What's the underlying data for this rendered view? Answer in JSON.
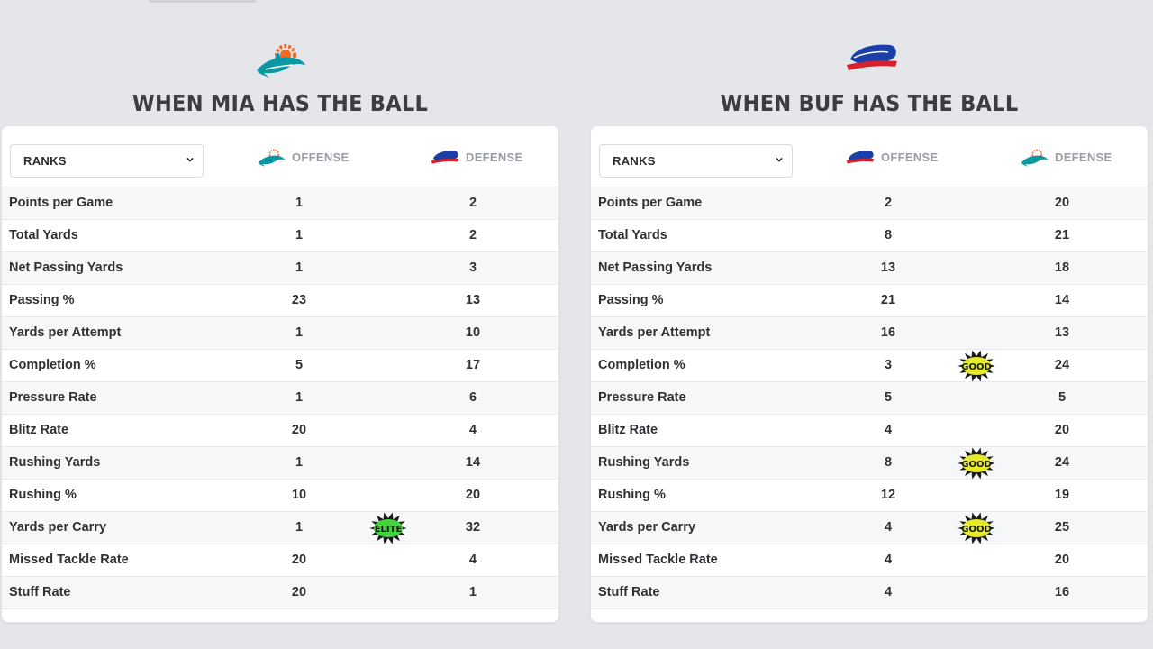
{
  "colors": {
    "mia_aqua": "#0b98a3",
    "mia_orange": "#f26a24",
    "buf_blue": "#1b3fa8",
    "buf_red": "#d5202e",
    "badge_green": "#43d33a",
    "badge_yellow": "#e6ea2c"
  },
  "panels": [
    {
      "title": "WHEN MIA HAS THE BALL",
      "logo": "dolphin-logo-icon",
      "select_value": "RANKS",
      "offense_label": "OFFENSE",
      "defense_label": "DEFENSE",
      "rows": [
        {
          "label": "Points per Game",
          "offense": "1",
          "defense": "2"
        },
        {
          "label": "Total Yards",
          "offense": "1",
          "defense": "2"
        },
        {
          "label": "Net Passing Yards",
          "offense": "1",
          "defense": "3"
        },
        {
          "label": "Passing %",
          "offense": "23",
          "defense": "13"
        },
        {
          "label": "Yards per Attempt",
          "offense": "1",
          "defense": "10"
        },
        {
          "label": "Completion %",
          "offense": "5",
          "defense": "17"
        },
        {
          "label": "Pressure Rate",
          "offense": "1",
          "defense": "6"
        },
        {
          "label": "Blitz Rate",
          "offense": "20",
          "defense": "4"
        },
        {
          "label": "Rushing Yards",
          "offense": "1",
          "defense": "14"
        },
        {
          "label": "Rushing %",
          "offense": "10",
          "defense": "20"
        },
        {
          "label": "Yards per Carry",
          "offense": "1",
          "defense": "32",
          "badge": "ELITE"
        },
        {
          "label": "Missed Tackle Rate",
          "offense": "20",
          "defense": "4"
        },
        {
          "label": "Stuff Rate",
          "offense": "20",
          "defense": "1"
        }
      ]
    },
    {
      "title": "WHEN BUF HAS THE BALL",
      "logo": "bison-logo-icon",
      "select_value": "RANKS",
      "offense_label": "OFFENSE",
      "defense_label": "DEFENSE",
      "rows": [
        {
          "label": "Points per Game",
          "offense": "2",
          "defense": "20"
        },
        {
          "label": "Total Yards",
          "offense": "8",
          "defense": "21"
        },
        {
          "label": "Net Passing Yards",
          "offense": "13",
          "defense": "18"
        },
        {
          "label": "Passing %",
          "offense": "21",
          "defense": "14"
        },
        {
          "label": "Yards per Attempt",
          "offense": "16",
          "defense": "13"
        },
        {
          "label": "Completion %",
          "offense": "3",
          "defense": "24",
          "badge": "GOOD"
        },
        {
          "label": "Pressure Rate",
          "offense": "5",
          "defense": "5"
        },
        {
          "label": "Blitz Rate",
          "offense": "4",
          "defense": "20"
        },
        {
          "label": "Rushing Yards",
          "offense": "8",
          "defense": "24",
          "badge": "GOOD"
        },
        {
          "label": "Rushing %",
          "offense": "12",
          "defense": "19"
        },
        {
          "label": "Yards per Carry",
          "offense": "4",
          "defense": "25",
          "badge": "GOOD"
        },
        {
          "label": "Missed Tackle Rate",
          "offense": "4",
          "defense": "20"
        },
        {
          "label": "Stuff Rate",
          "offense": "4",
          "defense": "16"
        }
      ]
    }
  ]
}
